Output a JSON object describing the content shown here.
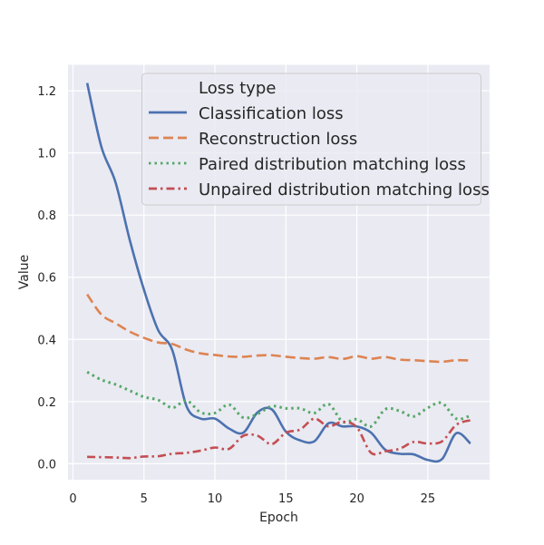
{
  "chart_data": {
    "type": "line",
    "xlabel": "Epoch",
    "ylabel": "Value",
    "xlim": [
      -0.35,
      29.35
    ],
    "ylim": [
      -0.0515,
      1.2835
    ],
    "xticks": [
      0,
      5,
      10,
      15,
      20,
      25
    ],
    "yticks": [
      0.0,
      0.2,
      0.4,
      0.6,
      0.8,
      1.0,
      1.2
    ],
    "ytick_labels": [
      "0.0",
      "0.2",
      "0.4",
      "0.6",
      "0.8",
      "1.0",
      "1.2"
    ],
    "grid": true,
    "legend": {
      "title": "Loss type",
      "position": "top-right"
    },
    "x": [
      1,
      2,
      3,
      4,
      5,
      6,
      7,
      8,
      9,
      10,
      11,
      12,
      13,
      14,
      15,
      16,
      17,
      18,
      19,
      20,
      21,
      22,
      23,
      24,
      25,
      26,
      27,
      28
    ],
    "series": [
      {
        "name": "Classification loss",
        "color": "#4c72b0",
        "dash": "solid",
        "values": [
          1.225,
          1.02,
          0.905,
          0.72,
          0.56,
          0.43,
          0.365,
          0.185,
          0.145,
          0.145,
          0.113,
          0.1,
          0.165,
          0.175,
          0.103,
          0.075,
          0.072,
          0.13,
          0.12,
          0.12,
          0.1,
          0.045,
          0.032,
          0.03,
          0.012,
          0.015,
          0.098,
          0.065
        ]
      },
      {
        "name": "Reconstruction loss",
        "color": "#dd8452",
        "dash": "dashed",
        "values": [
          0.545,
          0.48,
          0.452,
          0.425,
          0.405,
          0.39,
          0.385,
          0.367,
          0.355,
          0.35,
          0.345,
          0.344,
          0.348,
          0.349,
          0.344,
          0.34,
          0.338,
          0.343,
          0.337,
          0.346,
          0.338,
          0.343,
          0.335,
          0.333,
          0.33,
          0.328,
          0.333,
          0.332
        ]
      },
      {
        "name": "Paired distribution matching loss",
        "color": "#55a868",
        "dash": "dotted",
        "values": [
          0.295,
          0.27,
          0.255,
          0.235,
          0.215,
          0.205,
          0.18,
          0.203,
          0.165,
          0.163,
          0.19,
          0.148,
          0.16,
          0.185,
          0.178,
          0.178,
          0.163,
          0.192,
          0.135,
          0.143,
          0.12,
          0.175,
          0.17,
          0.152,
          0.18,
          0.195,
          0.145,
          0.155
        ]
      },
      {
        "name": "Unpaired distribution matching loss",
        "color": "#c44e52",
        "dash": "dashdot",
        "values": [
          0.022,
          0.021,
          0.02,
          0.018,
          0.023,
          0.024,
          0.032,
          0.035,
          0.042,
          0.052,
          0.048,
          0.09,
          0.09,
          0.063,
          0.1,
          0.11,
          0.145,
          0.12,
          0.135,
          0.117,
          0.035,
          0.04,
          0.048,
          0.07,
          0.065,
          0.072,
          0.125,
          0.14
        ]
      }
    ]
  }
}
